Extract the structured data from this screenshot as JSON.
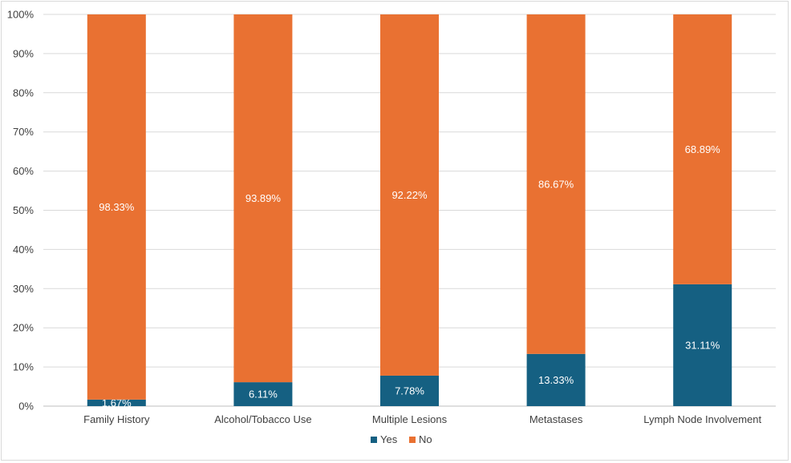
{
  "chart_data": {
    "type": "bar",
    "stacked": true,
    "categories": [
      "Family History",
      "Alcohol/Tobacco Use",
      "Multiple Lesions",
      "Metastases",
      "Lymph Node Involvement"
    ],
    "series": [
      {
        "name": "Yes",
        "color": "#156082",
        "values": [
          1.67,
          6.11,
          7.78,
          13.33,
          31.11
        ],
        "labels": [
          "1.67%",
          "6.11%",
          "7.78%",
          "13.33%",
          "31.11%"
        ]
      },
      {
        "name": "No",
        "color": "#E97132",
        "values": [
          98.33,
          93.89,
          92.22,
          86.67,
          68.89
        ],
        "labels": [
          "98.33%",
          "93.89%",
          "92.22%",
          "86.67%",
          "68.89%"
        ]
      }
    ],
    "yticks": [
      "0%",
      "10%",
      "20%",
      "30%",
      "40%",
      "50%",
      "60%",
      "70%",
      "80%",
      "90%",
      "100%"
    ],
    "ylim": [
      0,
      100
    ],
    "grid": true,
    "legend_position": "bottom"
  }
}
